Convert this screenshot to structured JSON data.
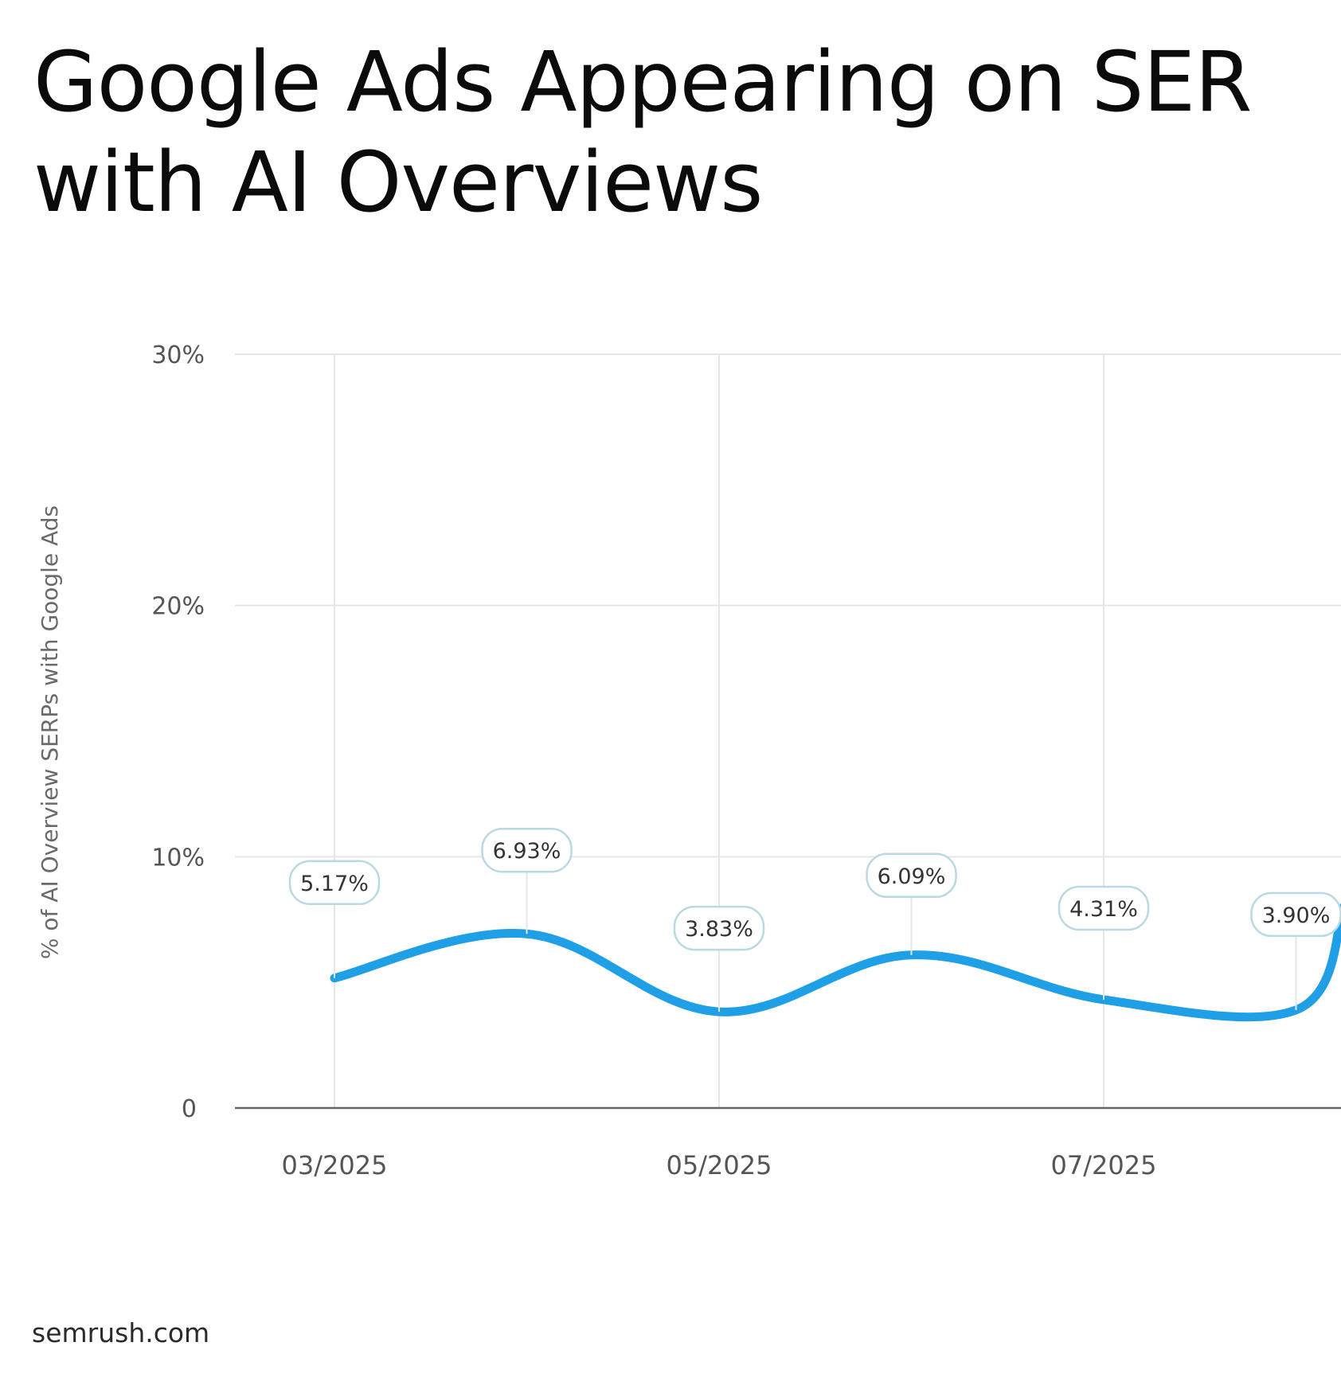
{
  "title_lines": [
    "Google Ads Appearing on SER",
    "with AI Overviews"
  ],
  "source": "semrush.com",
  "colors": {
    "line": "#1e9fe6",
    "grid": "#e6e6e6",
    "axis": "#666666",
    "label_border": "#b9d9e3",
    "tick_text": "#555555"
  },
  "chart_data": {
    "type": "line",
    "title": "Google Ads Appearing on SER with AI Overviews",
    "xlabel": "",
    "ylabel": "% of AI Overview SERPs with Google Ads",
    "ylim": [
      0,
      30
    ],
    "y_ticks": [
      {
        "value": 0,
        "label": "0"
      },
      {
        "value": 10,
        "label": "10%"
      },
      {
        "value": 20,
        "label": "20%"
      },
      {
        "value": 30,
        "label": "30%"
      }
    ],
    "x_ticks": [
      "03/2025",
      "05/2025",
      "07/2025"
    ],
    "x": [
      "03/2025",
      "04/2025",
      "05/2025",
      "06/2025",
      "07/2025",
      "08/2025"
    ],
    "values": [
      5.17,
      6.93,
      3.83,
      6.09,
      4.31,
      3.9
    ],
    "labels": [
      "5.17%",
      "6.93%",
      "3.83%",
      "6.09%",
      "4.31%",
      "3.90%"
    ],
    "grid": true
  }
}
